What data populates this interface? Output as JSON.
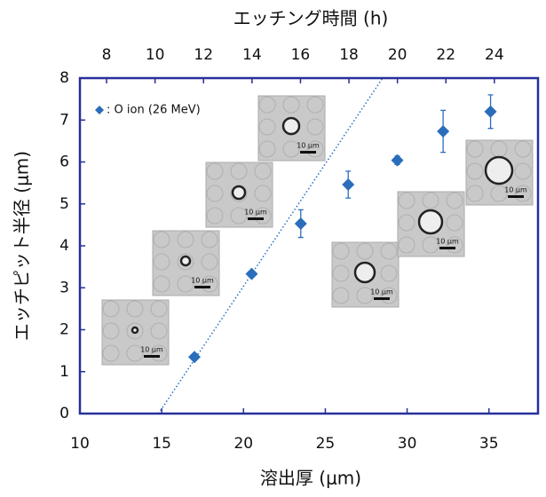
{
  "chart_data": {
    "type": "scatter",
    "title": "エッチング時間 (h)",
    "x_label": "溶出厚 (μm)",
    "y_label": "エッチピット半径 (μm)",
    "xlim": [
      10,
      38
    ],
    "xticks": [
      10,
      15,
      20,
      25,
      30,
      35
    ],
    "x2lim": [
      6.9,
      25.8
    ],
    "x2ticks": [
      8,
      10,
      12,
      14,
      16,
      18,
      20,
      22,
      24
    ],
    "ylim": [
      0,
      8
    ],
    "yticks": [
      0,
      1,
      2,
      3,
      4,
      5,
      6,
      7,
      8
    ],
    "series": [
      {
        "name": ": O ion (26 MeV)",
        "color": "#2a6ebb",
        "x": [
          17.0,
          20.5,
          23.5,
          26.4,
          29.4,
          32.2,
          35.1
        ],
        "values": [
          1.35,
          3.33,
          4.53,
          5.46,
          6.04,
          6.73,
          7.2
        ],
        "errors": [
          null,
          null,
          0.33,
          0.32,
          0.1,
          0.5,
          0.4
        ]
      }
    ],
    "trendline": {
      "color": "#2a6ebb",
      "x": [
        14.8,
        28.5
      ],
      "y": [
        0,
        8
      ]
    },
    "insets": [
      {
        "label": "10 μm"
      },
      {
        "label": "10 μm"
      },
      {
        "label": "10 μm"
      },
      {
        "label": "10 μm"
      },
      {
        "label": "10 μm"
      },
      {
        "label": "10 μm"
      },
      {
        "label": "10 μm"
      }
    ],
    "legend_position": "upper left"
  }
}
